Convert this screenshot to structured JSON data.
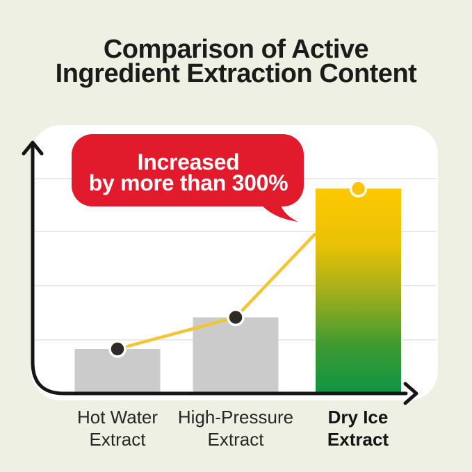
{
  "page": {
    "background": "#eef0e3"
  },
  "title": {
    "line1": "Comparison of Active",
    "line2": "Ingredient Extraction Content"
  },
  "bubble": {
    "line1": "Increased",
    "line2": "by more than 300%",
    "color": "#e11b2c",
    "text_color": "#ffffff"
  },
  "chart_data": {
    "type": "bar",
    "title": "Comparison of Active Ingredient Extraction Content",
    "categories": [
      "Hot Water Extract",
      "High-Pressure Extract",
      "Dry Ice Extract"
    ],
    "values_relative_pct_estimated": [
      100,
      170,
      455
    ],
    "annotation": "Increased by more than 300%",
    "annotation_target": "Dry Ice Extract",
    "xlabel": "",
    "ylabel": "",
    "gridlines": true,
    "axis_numeric_labels": false,
    "bar_fill_gray": "#cbcbcb",
    "gridline_color": "#e9e9e9",
    "trend_line_color": "#f1c533",
    "axis_color": "#151515",
    "marker_fills": [
      "#2d2a27",
      "#2d2a27",
      "#fdc500"
    ],
    "marker_ring": "#ffffff",
    "gradient_stops": [
      {
        "offset": 0,
        "color": "#fdc800"
      },
      {
        "offset": 0.28,
        "color": "#e9c106"
      },
      {
        "offset": 0.52,
        "color": "#9cad1e"
      },
      {
        "offset": 0.76,
        "color": "#3f9a31"
      },
      {
        "offset": 1,
        "color": "#0c9545"
      }
    ],
    "labels": [
      {
        "line1": "Hot Water",
        "line2": "Extract",
        "bold": false
      },
      {
        "line1": "High-Pressure",
        "line2": "Extract",
        "bold": false
      },
      {
        "line1": "Dry Ice",
        "line2": "Extract",
        "bold": true
      }
    ]
  }
}
